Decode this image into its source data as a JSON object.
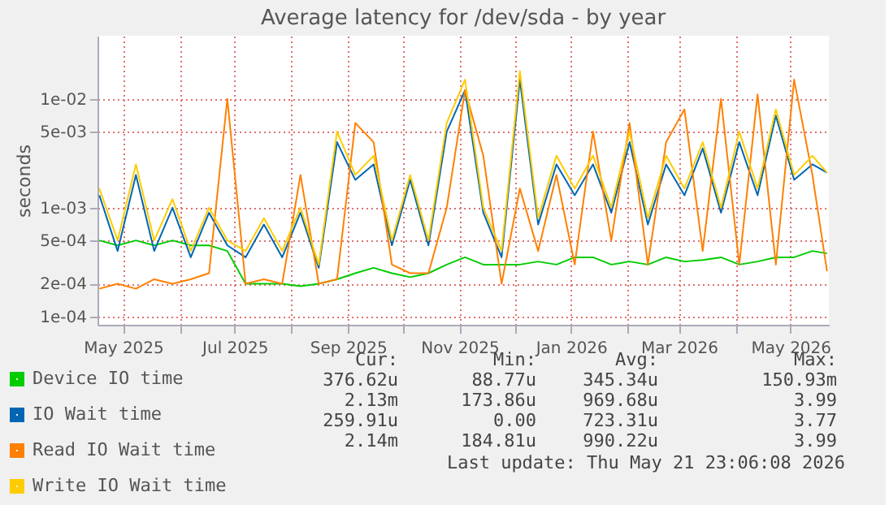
{
  "chart_data": {
    "type": "line",
    "title": "Average latency for /dev/sda - by year",
    "ylabel": "seconds",
    "x": [
      "2025-04-18",
      "2025-04-28",
      "2025-05-08",
      "2025-05-18",
      "2025-05-28",
      "2025-06-07",
      "2025-06-17",
      "2025-06-27",
      "2025-07-07",
      "2025-07-17",
      "2025-07-27",
      "2025-08-06",
      "2025-08-16",
      "2025-08-26",
      "2025-09-05",
      "2025-09-15",
      "2025-09-25",
      "2025-10-05",
      "2025-10-15",
      "2025-10-25",
      "2025-11-04",
      "2025-11-14",
      "2025-11-24",
      "2025-12-04",
      "2025-12-14",
      "2025-12-24",
      "2026-01-03",
      "2026-01-13",
      "2026-01-23",
      "2026-02-02",
      "2026-02-12",
      "2026-02-22",
      "2026-03-04",
      "2026-03-14",
      "2026-03-24",
      "2026-04-03",
      "2026-04-13",
      "2026-04-23",
      "2026-05-03",
      "2026-05-13",
      "2026-05-21"
    ],
    "series": [
      {
        "name": "Device IO time",
        "color": "#00cc00",
        "values": [
          0.0005,
          0.00045,
          0.0005,
          0.00045,
          0.0005,
          0.00045,
          0.00045,
          0.0004,
          0.0002,
          0.0002,
          0.0002,
          0.00019,
          0.0002,
          0.00022,
          0.00025,
          0.00028,
          0.00025,
          0.00023,
          0.00025,
          0.0003,
          0.00035,
          0.0003,
          0.0003,
          0.0003,
          0.00032,
          0.0003,
          0.00035,
          0.00035,
          0.0003,
          0.00032,
          0.0003,
          0.00035,
          0.00032,
          0.00033,
          0.00035,
          0.0003,
          0.00032,
          0.00035,
          0.00035,
          0.0004,
          0.00038
        ]
      },
      {
        "name": "IO Wait time",
        "color": "#0066b3",
        "values": [
          0.0013,
          0.0004,
          0.002,
          0.0004,
          0.001,
          0.00035,
          0.0009,
          0.00045,
          0.00035,
          0.0007,
          0.00035,
          0.0009,
          0.00028,
          0.004,
          0.0018,
          0.0025,
          0.00045,
          0.0018,
          0.00045,
          0.005,
          0.012,
          0.0009,
          0.00035,
          0.015,
          0.0007,
          0.0025,
          0.0013,
          0.0025,
          0.0009,
          0.004,
          0.0007,
          0.0025,
          0.0013,
          0.0035,
          0.0009,
          0.004,
          0.0013,
          0.007,
          0.0018,
          0.0025,
          0.0021
        ]
      },
      {
        "name": "Read IO Wait time",
        "color": "#ff8000",
        "values": [
          0.00018,
          0.0002,
          0.00018,
          0.00022,
          0.0002,
          0.00022,
          0.00025,
          0.01,
          0.0002,
          0.00022,
          0.0002,
          0.002,
          0.0002,
          0.00022,
          0.006,
          0.004,
          0.0003,
          0.00025,
          0.00025,
          0.001,
          0.012,
          0.003,
          0.0002,
          0.0015,
          0.0004,
          0.002,
          0.0003,
          0.005,
          0.0005,
          0.006,
          0.0003,
          0.004,
          0.008,
          0.0004,
          0.01,
          0.0003,
          0.011,
          0.0003,
          0.015,
          0.002,
          0.00026
        ]
      },
      {
        "name": "Write IO Wait time",
        "color": "#ffcc00",
        "values": [
          0.0015,
          0.0005,
          0.0025,
          0.0005,
          0.0012,
          0.0004,
          0.001,
          0.0005,
          0.0004,
          0.0008,
          0.0004,
          0.001,
          0.0003,
          0.005,
          0.002,
          0.003,
          0.0005,
          0.002,
          0.0005,
          0.006,
          0.015,
          0.001,
          0.0004,
          0.018,
          0.0008,
          0.003,
          0.0015,
          0.003,
          0.001,
          0.005,
          0.0008,
          0.003,
          0.0015,
          0.004,
          0.001,
          0.005,
          0.0015,
          0.008,
          0.002,
          0.003,
          0.0021
        ]
      }
    ],
    "log": true,
    "ylim": [
      8.4e-05,
      0.038
    ],
    "yticks": [
      {
        "value": 0.0001,
        "label": "1e-04"
      },
      {
        "value": 0.0002,
        "label": "2e-04"
      },
      {
        "value": 0.0005,
        "label": "5e-04"
      },
      {
        "value": 0.001,
        "label": "1e-03"
      },
      {
        "value": 0.005,
        "label": "5e-03"
      },
      {
        "value": 0.01,
        "label": "1e-02"
      }
    ],
    "xlim": [
      "2025-04-17",
      "2026-05-22"
    ],
    "xticks": [
      {
        "value": "2025-05-01",
        "label": "May 2025"
      },
      {
        "value": "2025-06-01",
        "label": null
      },
      {
        "value": "2025-07-01",
        "label": "Jul 2025"
      },
      {
        "value": "2025-08-01",
        "label": null
      },
      {
        "value": "2025-09-01",
        "label": "Sep 2025"
      },
      {
        "value": "2025-10-01",
        "label": null
      },
      {
        "value": "2025-11-01",
        "label": "Nov 2025"
      },
      {
        "value": "2025-12-01",
        "label": null
      },
      {
        "value": "2026-01-01",
        "label": "Jan 2026"
      },
      {
        "value": "2026-02-01",
        "label": null
      },
      {
        "value": "2026-03-01",
        "label": "Mar 2026"
      },
      {
        "value": "2026-04-01",
        "label": null
      },
      {
        "value": "2026-05-01",
        "label": "May 2026"
      }
    ],
    "grid": true,
    "legend": "bottom",
    "marker": "none",
    "line_style": "solid",
    "annotations": [
      "Cur:",
      "Min:",
      "Avg:",
      "Max:",
      "376.62u",
      "88.77u",
      "345.34u",
      "150.93m",
      "2.13m",
      "173.86u",
      "969.68u",
      "3.99",
      "259.91u",
      "0.00",
      "723.31u",
      "3.77",
      "2.14m",
      "184.81u",
      "990.22u",
      "3.99",
      "Last update: Thu May 21 23:06:08 2026"
    ]
  }
}
